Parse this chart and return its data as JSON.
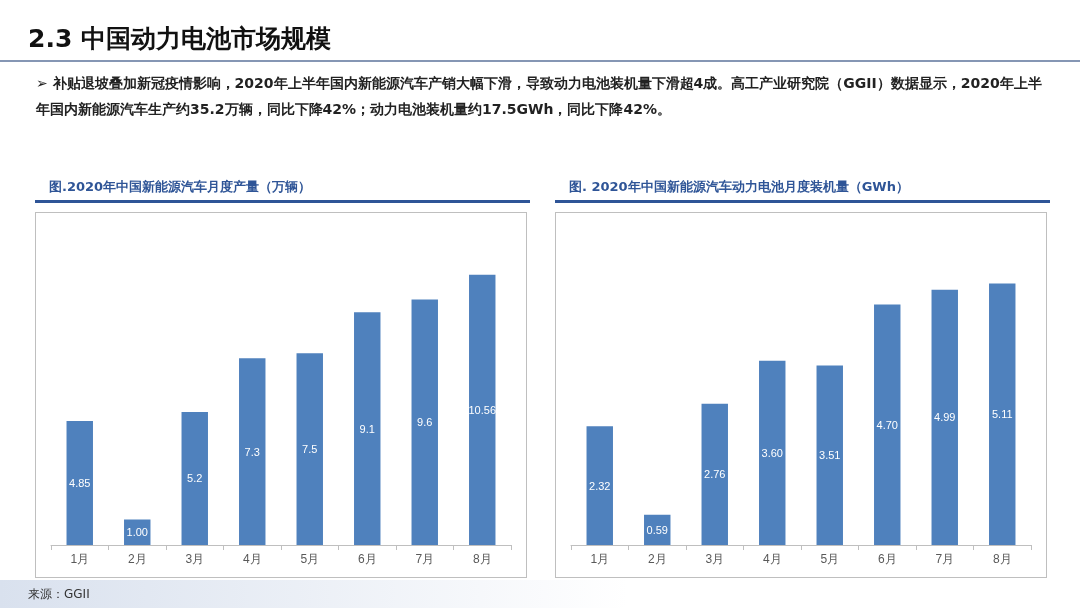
{
  "chart_data": [
    {
      "type": "other",
      "title": "2.3 中国动力电池市场规模",
      "annotations": [
        "➢  补贴退坡叠加新冠疫情影响，2020年上半年国内新能源汽车产销大幅下滑，导致动力电池装机量下滑超4成。高工产业研究院（GGII）数据显示，2020年上半年国内新能源汽车生产约35.2万辆，同比下降42%；动力电池装机量约17.5GWh，同比下降42%。",
        "来源：GGII"
      ]
    },
    {
      "type": "bar",
      "title": "图.2020年中国新能源汽车月度产量（万辆）",
      "categories": [
        "1月",
        "2月",
        "3月",
        "4月",
        "5月",
        "6月",
        "7月",
        "8月"
      ],
      "color": "#4f81bd",
      "values": [
        4.85,
        1.0,
        5.2,
        7.3,
        7.5,
        9.1,
        9.6,
        10.56
      ],
      "value_labels": [
        "4.85",
        "1.00",
        "5.2",
        "7.3",
        "7.5",
        "9.1",
        "9.6",
        "10.56"
      ]
    },
    {
      "type": "bar",
      "title": "图. 2020年中国新能源汽车动力电池月度装机量（GWh）",
      "categories": [
        "1月",
        "2月",
        "3月",
        "4月",
        "5月",
        "6月",
        "7月",
        "8月"
      ],
      "color": "#4f81bd",
      "values": [
        2.32,
        0.59,
        2.76,
        3.6,
        3.51,
        4.7,
        4.99,
        5.11
      ],
      "value_labels": [
        "2.32",
        "0.59",
        "2.76",
        "3.60",
        "3.51",
        "4.70",
        "4.99",
        "5.11"
      ]
    }
  ]
}
